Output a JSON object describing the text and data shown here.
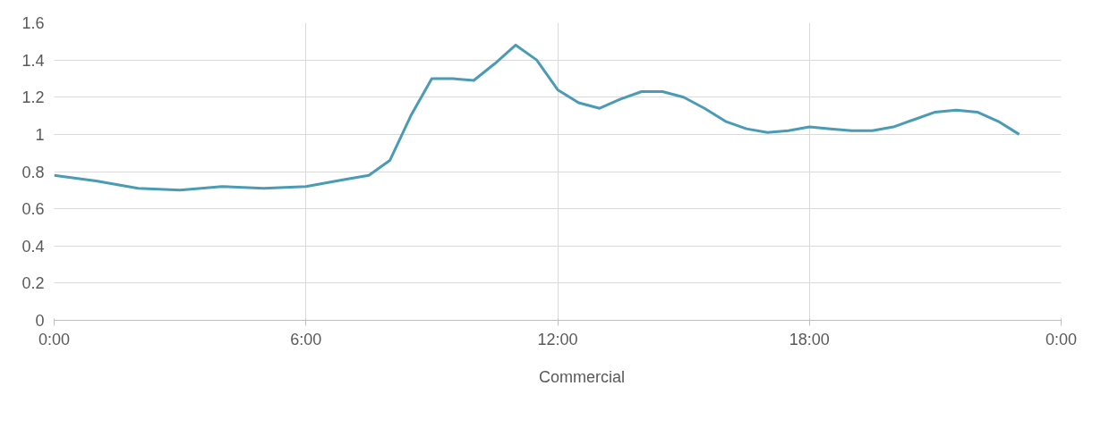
{
  "chart_data": {
    "type": "line",
    "x": [
      0,
      1,
      2,
      3,
      4,
      5,
      6,
      6.5,
      7,
      7.5,
      8,
      8.5,
      9,
      9.5,
      10,
      10.5,
      11,
      11.5,
      12,
      12.5,
      13,
      13.5,
      14,
      14.5,
      15,
      15.5,
      16,
      16.5,
      17,
      17.5,
      18,
      18.5,
      19,
      19.5,
      20,
      20.5,
      21,
      21.5,
      22,
      22.5,
      23
    ],
    "series": [
      {
        "name": "Commercial",
        "color": "#4a9bb5",
        "values": [
          0.78,
          0.75,
          0.71,
          0.7,
          0.72,
          0.71,
          0.72,
          0.74,
          0.76,
          0.78,
          0.86,
          1.1,
          1.3,
          1.3,
          1.29,
          1.38,
          1.48,
          1.4,
          1.24,
          1.17,
          1.14,
          1.19,
          1.23,
          1.23,
          1.2,
          1.14,
          1.07,
          1.03,
          1.01,
          1.02,
          1.04,
          1.03,
          1.02,
          1.02,
          1.04,
          1.08,
          1.12,
          1.13,
          1.12,
          1.07,
          1.0
        ]
      }
    ],
    "xlim": [
      0,
      24
    ],
    "xticks": [
      {
        "value": 0,
        "label": "0:00"
      },
      {
        "value": 6,
        "label": "6:00"
      },
      {
        "value": 12,
        "label": "12:00"
      },
      {
        "value": 18,
        "label": "18:00"
      },
      {
        "value": 24,
        "label": "0:00"
      }
    ],
    "ylim": [
      0,
      1.6
    ],
    "yticks": [
      0,
      0.2,
      0.4,
      0.6,
      0.8,
      1,
      1.2,
      1.4,
      1.6
    ],
    "grid": true,
    "legend": "bottom",
    "marker": "none",
    "line_style": "solid"
  }
}
